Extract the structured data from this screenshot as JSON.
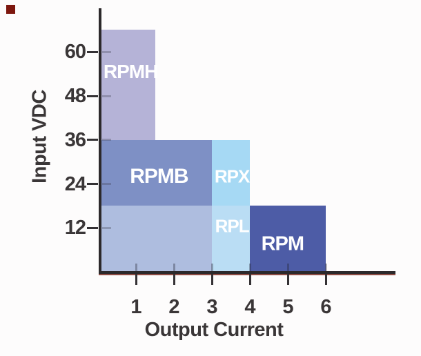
{
  "decorations": {
    "background_color": "#fdfcfc",
    "axis_color": "#2c292b",
    "tick_color": "#343134",
    "text_color": "#3a3637",
    "axis_underline_color": "#8c4a42",
    "corner_square_color": "#7d170e",
    "region_label_color": "#ffffff"
  },
  "chart_data": {
    "type": "bar",
    "subtype": "operating-region-blocks",
    "title": "",
    "xlabel": "Output Current",
    "ylabel": "Input VDC",
    "xlim": [
      0,
      7.8
    ],
    "ylim": [
      0,
      72
    ],
    "x_ticks": [
      1,
      2,
      3,
      4,
      5,
      6
    ],
    "y_ticks": [
      12,
      24,
      36,
      48,
      60
    ],
    "grid": false,
    "legend": false,
    "regions": [
      {
        "label": "RPMH",
        "x": [
          0,
          1.5
        ],
        "y": [
          36,
          66
        ],
        "color": "#b5b3d7",
        "label_fx": 0.56,
        "label_fy": 0.38,
        "label_size": 28
      },
      {
        "label": "RPMB",
        "x": [
          0,
          3
        ],
        "y": [
          18,
          36
        ],
        "color": "#7e90c5",
        "label_fx": 0.53,
        "label_fy": 0.56,
        "label_size": 30
      },
      {
        "label": "",
        "x": [
          0,
          3
        ],
        "y": [
          0,
          18
        ],
        "color": "#aebddf",
        "label_fx": 0.5,
        "label_fy": 0.5,
        "label_size": 0
      },
      {
        "label": "RPX",
        "x": [
          3,
          4
        ],
        "y": [
          18,
          36
        ],
        "color": "#a6d9f4",
        "label_fx": 0.53,
        "label_fy": 0.56,
        "label_size": 26
      },
      {
        "label": "RPL",
        "x": [
          3,
          4
        ],
        "y": [
          0,
          18
        ],
        "color": "#baddf4",
        "label_fx": 0.53,
        "label_fy": 0.3,
        "label_size": 26
      },
      {
        "label": "RPM",
        "x": [
          4,
          6
        ],
        "y": [
          0,
          18
        ],
        "color": "#4d5ca6",
        "label_fx": 0.43,
        "label_fy": 0.56,
        "label_size": 29
      }
    ]
  }
}
